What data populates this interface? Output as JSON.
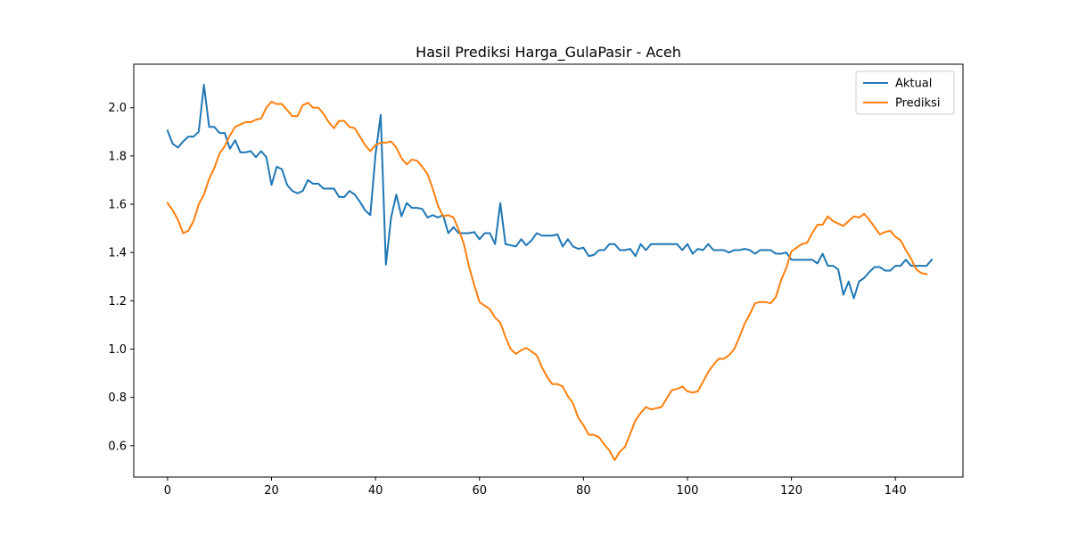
{
  "chart_data": {
    "type": "line",
    "title": "Hasil Prediksi Harga_GulaPasir - Aceh",
    "xlabel": "",
    "ylabel": "",
    "xlim": [
      -6.5,
      153
    ],
    "ylim": [
      0.47,
      2.18
    ],
    "x_ticks": [
      0,
      20,
      40,
      60,
      80,
      100,
      120,
      140
    ],
    "y_ticks": [
      0.6,
      0.8,
      1.0,
      1.2,
      1.4,
      1.6,
      1.8,
      2.0
    ],
    "y_tick_labels": [
      "0.6",
      "0.8",
      "1.0",
      "1.2",
      "1.4",
      "1.6",
      "1.8",
      "2.0"
    ],
    "grid": false,
    "legend_position": "top-right",
    "x_start": 0,
    "series": [
      {
        "name": "Aktual",
        "color": "#1f77b4",
        "values": [
          1.905,
          1.85,
          1.835,
          1.86,
          1.88,
          1.88,
          1.9,
          2.095,
          1.92,
          1.92,
          1.895,
          1.895,
          1.83,
          1.865,
          1.815,
          1.815,
          1.82,
          1.795,
          1.82,
          1.795,
          1.68,
          1.755,
          1.745,
          1.68,
          1.655,
          1.645,
          1.655,
          1.7,
          1.685,
          1.685,
          1.665,
          1.665,
          1.665,
          1.63,
          1.63,
          1.655,
          1.64,
          1.61,
          1.575,
          1.555,
          1.805,
          1.97,
          1.35,
          1.545,
          1.64,
          1.55,
          1.605,
          1.585,
          1.585,
          1.58,
          1.545,
          1.555,
          1.545,
          1.555,
          1.48,
          1.505,
          1.48,
          1.48,
          1.48,
          1.485,
          1.455,
          1.48,
          1.48,
          1.435,
          1.605,
          1.435,
          1.43,
          1.425,
          1.455,
          1.43,
          1.45,
          1.48,
          1.47,
          1.47,
          1.47,
          1.475,
          1.425,
          1.455,
          1.425,
          1.415,
          1.42,
          1.385,
          1.39,
          1.41,
          1.41,
          1.435,
          1.435,
          1.41,
          1.41,
          1.415,
          1.385,
          1.435,
          1.41,
          1.435,
          1.435,
          1.435,
          1.435,
          1.435,
          1.435,
          1.41,
          1.435,
          1.395,
          1.415,
          1.41,
          1.435,
          1.41,
          1.41,
          1.41,
          1.4,
          1.41,
          1.41,
          1.415,
          1.41,
          1.395,
          1.41,
          1.41,
          1.41,
          1.395,
          1.395,
          1.4,
          1.37,
          1.37,
          1.37,
          1.37,
          1.37,
          1.355,
          1.395,
          1.345,
          1.345,
          1.33,
          1.225,
          1.28,
          1.21,
          1.28,
          1.295,
          1.32,
          1.34,
          1.34,
          1.325,
          1.325,
          1.345,
          1.345,
          1.37,
          1.345,
          1.345,
          1.345,
          1.345,
          1.37
        ]
      },
      {
        "name": "Prediksi",
        "color": "#ff7f0e",
        "values": [
          1.605,
          1.575,
          1.535,
          1.48,
          1.49,
          1.53,
          1.6,
          1.64,
          1.705,
          1.75,
          1.81,
          1.84,
          1.885,
          1.92,
          1.93,
          1.94,
          1.94,
          1.95,
          1.955,
          2.0,
          2.025,
          2.015,
          2.015,
          1.99,
          1.965,
          1.965,
          2.01,
          2.02,
          2.0,
          2.0,
          1.975,
          1.94,
          1.915,
          1.945,
          1.945,
          1.92,
          1.915,
          1.88,
          1.845,
          1.82,
          1.845,
          1.855,
          1.855,
          1.86,
          1.835,
          1.79,
          1.765,
          1.785,
          1.78,
          1.755,
          1.725,
          1.665,
          1.595,
          1.55,
          1.555,
          1.545,
          1.495,
          1.435,
          1.34,
          1.265,
          1.195,
          1.18,
          1.165,
          1.13,
          1.11,
          1.05,
          1.0,
          0.98,
          0.995,
          1.005,
          0.99,
          0.975,
          0.925,
          0.885,
          0.855,
          0.855,
          0.845,
          0.805,
          0.775,
          0.715,
          0.685,
          0.645,
          0.645,
          0.635,
          0.605,
          0.58,
          0.54,
          0.575,
          0.595,
          0.65,
          0.705,
          0.735,
          0.76,
          0.75,
          0.755,
          0.76,
          0.795,
          0.83,
          0.835,
          0.845,
          0.825,
          0.82,
          0.825,
          0.865,
          0.905,
          0.935,
          0.96,
          0.96,
          0.975,
          1.0,
          1.05,
          1.105,
          1.145,
          1.19,
          1.195,
          1.195,
          1.19,
          1.215,
          1.285,
          1.335,
          1.405,
          1.42,
          1.435,
          1.44,
          1.48,
          1.515,
          1.515,
          1.55,
          1.53,
          1.52,
          1.51,
          1.53,
          1.55,
          1.545,
          1.56,
          1.535,
          1.505,
          1.475,
          1.485,
          1.49,
          1.465,
          1.45,
          1.41,
          1.375,
          1.33,
          1.315,
          1.31
        ]
      }
    ]
  }
}
